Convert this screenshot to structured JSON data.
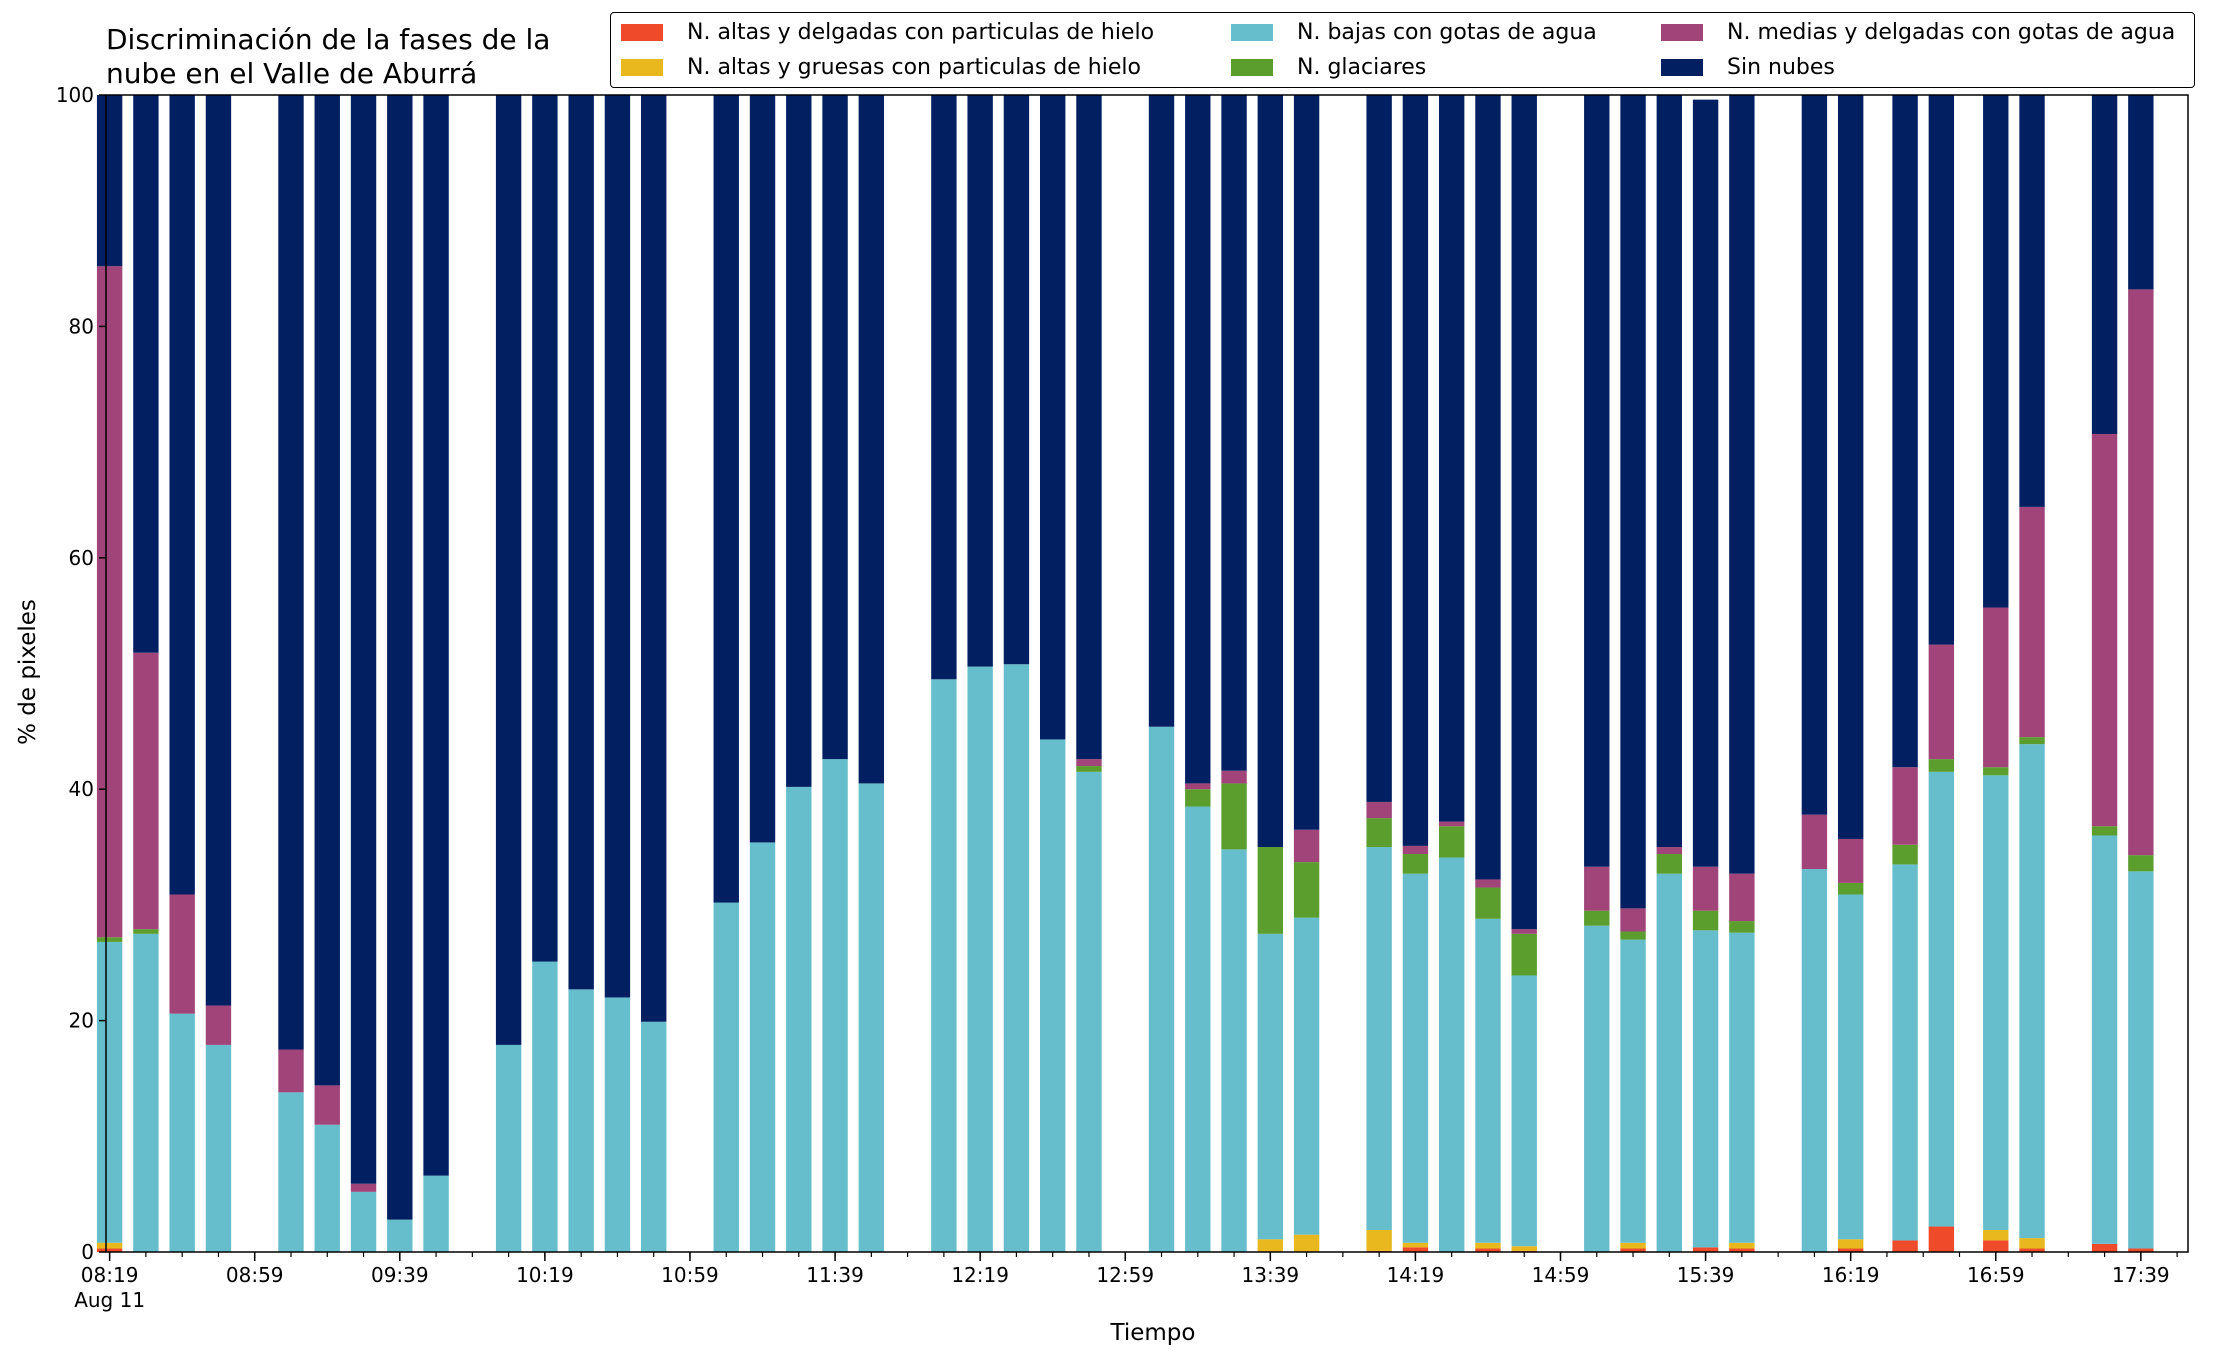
{
  "chart_data": {
    "type": "bar",
    "stacked": true,
    "title": "Discriminación de la fases de la\nnube en el Valle de Aburrá",
    "xlabel": "Tiempo",
    "ylabel": "% de pixeles",
    "ylim": [
      0,
      100
    ],
    "y_ticks": [
      0,
      20,
      40,
      60,
      80,
      100
    ],
    "x_range_minutes": [
      498,
      1072
    ],
    "x_tick_labels": [
      "08:19",
      "08:59",
      "09:39",
      "10:19",
      "10:59",
      "11:39",
      "12:19",
      "12:59",
      "13:39",
      "14:19",
      "14:59",
      "15:39",
      "16:19",
      "16:59",
      "17:39"
    ],
    "x_date_label": "Aug 11",
    "legend_position": "top-right",
    "categories": [
      "08:19",
      "08:29",
      "08:39",
      "08:49",
      "09:09",
      "09:19",
      "09:29",
      "09:39",
      "09:49",
      "10:09",
      "10:19",
      "10:29",
      "10:39",
      "10:49",
      "11:09",
      "11:19",
      "11:29",
      "11:39",
      "11:49",
      "12:09",
      "12:19",
      "12:29",
      "12:39",
      "12:49",
      "13:09",
      "13:19",
      "13:29",
      "13:39",
      "13:49",
      "14:09",
      "14:19",
      "14:29",
      "14:39",
      "14:49",
      "15:09",
      "15:19",
      "15:29",
      "15:39",
      "15:49",
      "16:09",
      "16:19",
      "16:34",
      "16:44",
      "16:59",
      "17:09",
      "17:29",
      "17:39"
    ],
    "series": [
      {
        "name": "N. altas y delgadas con particulas de hielo",
        "color": "#EF4A2A",
        "values": [
          0.3,
          0,
          0,
          0,
          0,
          0,
          0,
          0,
          0,
          0,
          0,
          0,
          0,
          0,
          0,
          0,
          0,
          0,
          0,
          0,
          0,
          0,
          0,
          0,
          0,
          0,
          0,
          0,
          0,
          0.1,
          0.4,
          0,
          0.3,
          0.1,
          0,
          0.3,
          0,
          0.4,
          0.3,
          0,
          0.3,
          1.0,
          2.2,
          1.0,
          0.3,
          0.7,
          0.3
        ]
      },
      {
        "name": "N. altas y gruesas con particulas de hielo",
        "color": "#E8B81E",
        "values": [
          0.5,
          0,
          0,
          0,
          0,
          0,
          0,
          0,
          0,
          0,
          0,
          0,
          0,
          0,
          0,
          0,
          0,
          0,
          0,
          0,
          0,
          0,
          0,
          0,
          0,
          0,
          0,
          1.1,
          1.5,
          1.8,
          0.4,
          0,
          0.5,
          0.4,
          0,
          0.5,
          0,
          0,
          0.5,
          0,
          0.8,
          0,
          0,
          0.9,
          0.9,
          0,
          0
        ]
      },
      {
        "name": "N. bajas con gotas de agua",
        "color": "#66BECC",
        "values": [
          26.0,
          27.5,
          20.6,
          17.9,
          13.8,
          11.0,
          5.2,
          2.8,
          6.6,
          17.9,
          25.1,
          22.7,
          22.0,
          19.9,
          30.2,
          35.4,
          40.2,
          42.6,
          40.5,
          49.5,
          50.6,
          50.8,
          44.3,
          41.5,
          45.4,
          38.5,
          34.8,
          26.4,
          27.4,
          33.1,
          31.9,
          34.1,
          28.0,
          23.4,
          28.2,
          26.2,
          32.7,
          27.4,
          26.8,
          33.1,
          29.8,
          32.5,
          39.3,
          39.3,
          42.7,
          35.3,
          32.6
        ]
      },
      {
        "name": "N. glaciares",
        "color": "#5B9E2E",
        "values": [
          0.4,
          0.4,
          0,
          0,
          0,
          0,
          0,
          0,
          0,
          0,
          0,
          0,
          0,
          0,
          0,
          0,
          0,
          0,
          0,
          0,
          0,
          0,
          0,
          0.5,
          0,
          1.5,
          5.7,
          7.5,
          4.8,
          2.5,
          1.7,
          2.7,
          2.7,
          3.6,
          1.3,
          0.7,
          1.7,
          1.7,
          1.0,
          0,
          1.0,
          1.7,
          1.1,
          0.7,
          0.6,
          0.8,
          1.4
        ]
      },
      {
        "name": "N. medias y delgadas con gotas de agua",
        "color": "#A0447A",
        "values": [
          58.0,
          23.9,
          10.3,
          3.4,
          3.7,
          3.4,
          0.7,
          0,
          0,
          0,
          0,
          0,
          0,
          0,
          0,
          0,
          0,
          0,
          0,
          0,
          0,
          0,
          0,
          0.6,
          0,
          0.5,
          1.1,
          0,
          2.8,
          1.4,
          0.7,
          0.4,
          0.7,
          0.4,
          3.8,
          2.0,
          0.6,
          3.8,
          4.1,
          4.7,
          3.8,
          6.7,
          9.9,
          13.8,
          19.9,
          33.9,
          48.9
        ]
      },
      {
        "name": "Sin nubes",
        "color": "#021F61",
        "values": [
          14.8,
          48.2,
          69.1,
          78.7,
          82.5,
          85.6,
          94.1,
          97.2,
          93.4,
          82.1,
          74.9,
          77.3,
          78.0,
          80.1,
          69.8,
          64.6,
          59.8,
          57.4,
          59.5,
          50.5,
          49.4,
          49.2,
          55.7,
          57.4,
          54.6,
          59.5,
          58.4,
          65.0,
          63.5,
          61.1,
          64.9,
          62.8,
          67.8,
          72.1,
          66.7,
          70.3,
          65.0,
          66.3,
          67.3,
          62.2,
          64.3,
          58.1,
          47.5,
          44.3,
          35.6,
          29.3,
          16.8
        ]
      }
    ]
  }
}
